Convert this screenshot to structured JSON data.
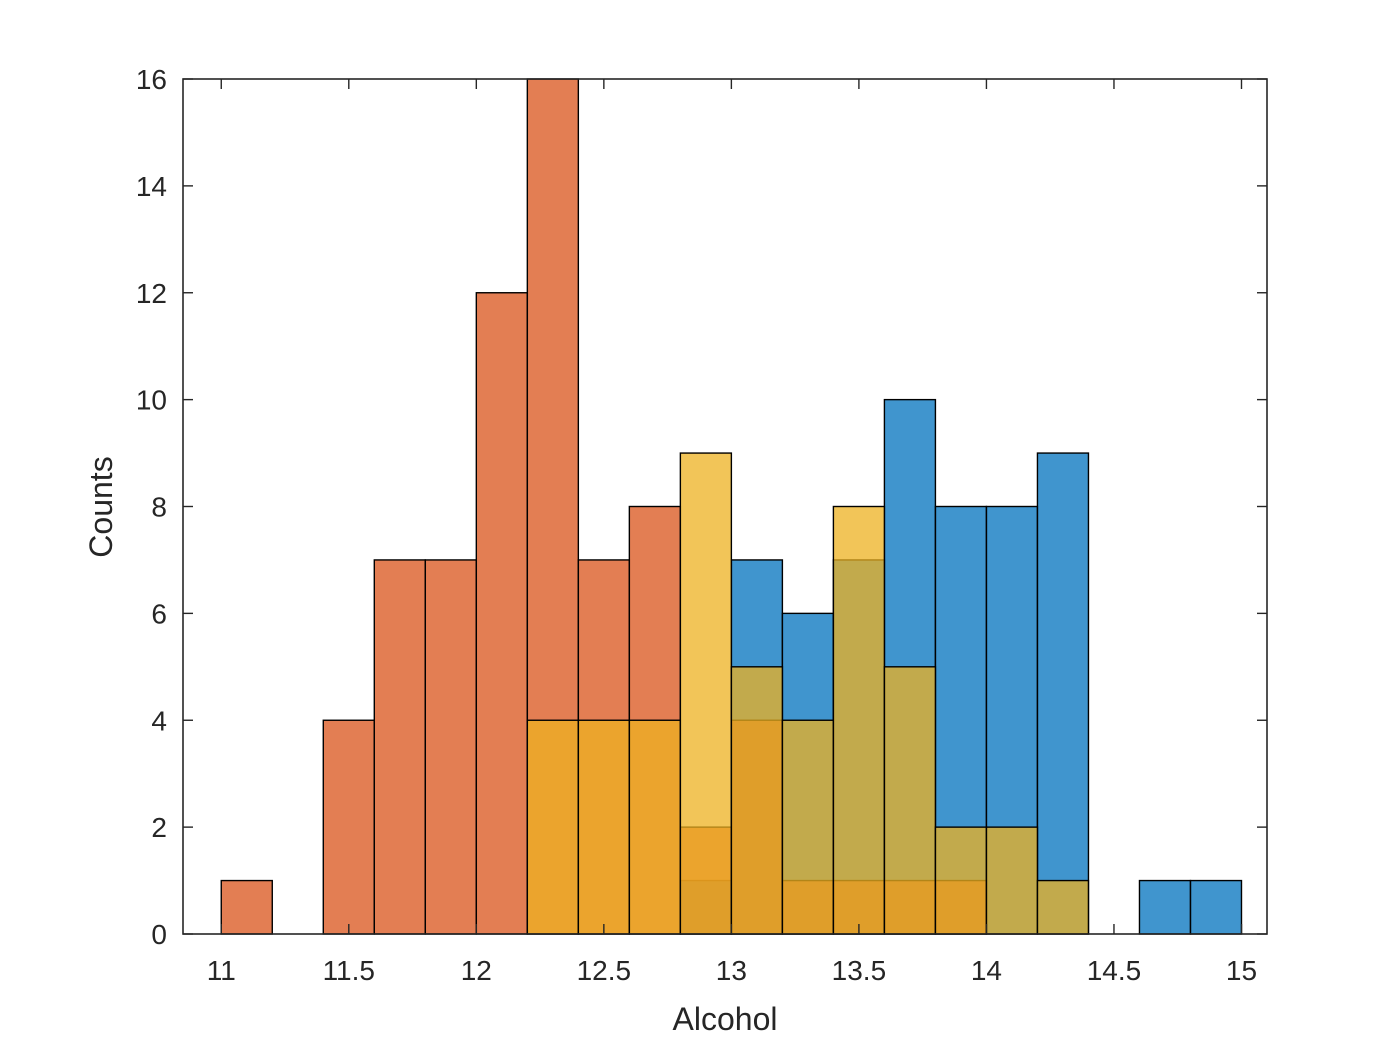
{
  "chart_data": {
    "type": "bar",
    "title": "",
    "xlabel": "Alcohol",
    "ylabel": "Counts",
    "xlim": [
      10.85,
      15.1
    ],
    "ylim": [
      0,
      16
    ],
    "grid": false,
    "bin_width": 0.2,
    "x_ticks": [
      "11",
      "11.5",
      "12",
      "12.5",
      "13",
      "13.5",
      "14",
      "14.5",
      "15"
    ],
    "y_ticks": [
      "0",
      "2",
      "4",
      "6",
      "8",
      "10",
      "12",
      "14",
      "16"
    ],
    "series": [
      {
        "color": "#0072BD",
        "opacity": 0.75,
        "bins": [
          {
            "x0": 12.8,
            "count": 1
          },
          {
            "x0": 13.0,
            "count": 7
          },
          {
            "x0": 13.2,
            "count": 6
          },
          {
            "x0": 13.4,
            "count": 7
          },
          {
            "x0": 13.6,
            "count": 10
          },
          {
            "x0": 13.8,
            "count": 8
          },
          {
            "x0": 14.0,
            "count": 8
          },
          {
            "x0": 14.2,
            "count": 9
          },
          {
            "x0": 14.6,
            "count": 1
          },
          {
            "x0": 14.8,
            "count": 1
          }
        ]
      },
      {
        "color": "#D95319",
        "opacity": 0.75,
        "bins": [
          {
            "x0": 11.0,
            "count": 1
          },
          {
            "x0": 11.4,
            "count": 4
          },
          {
            "x0": 11.6,
            "count": 7
          },
          {
            "x0": 11.8,
            "count": 7
          },
          {
            "x0": 12.0,
            "count": 12
          },
          {
            "x0": 12.2,
            "count": 16
          },
          {
            "x0": 12.4,
            "count": 7
          },
          {
            "x0": 12.6,
            "count": 8
          },
          {
            "x0": 12.8,
            "count": 2
          },
          {
            "x0": 13.0,
            "count": 4
          },
          {
            "x0": 13.2,
            "count": 1
          },
          {
            "x0": 13.4,
            "count": 1
          },
          {
            "x0": 13.6,
            "count": 1
          },
          {
            "x0": 13.8,
            "count": 1
          }
        ]
      },
      {
        "color": "#EDB120",
        "opacity": 0.75,
        "bins": [
          {
            "x0": 12.2,
            "count": 4
          },
          {
            "x0": 12.4,
            "count": 4
          },
          {
            "x0": 12.6,
            "count": 4
          },
          {
            "x0": 12.8,
            "count": 9
          },
          {
            "x0": 13.0,
            "count": 5
          },
          {
            "x0": 13.2,
            "count": 4
          },
          {
            "x0": 13.4,
            "count": 8
          },
          {
            "x0": 13.6,
            "count": 5
          },
          {
            "x0": 13.8,
            "count": 2
          },
          {
            "x0": 14.0,
            "count": 2
          },
          {
            "x0": 14.2,
            "count": 1
          }
        ]
      }
    ]
  }
}
